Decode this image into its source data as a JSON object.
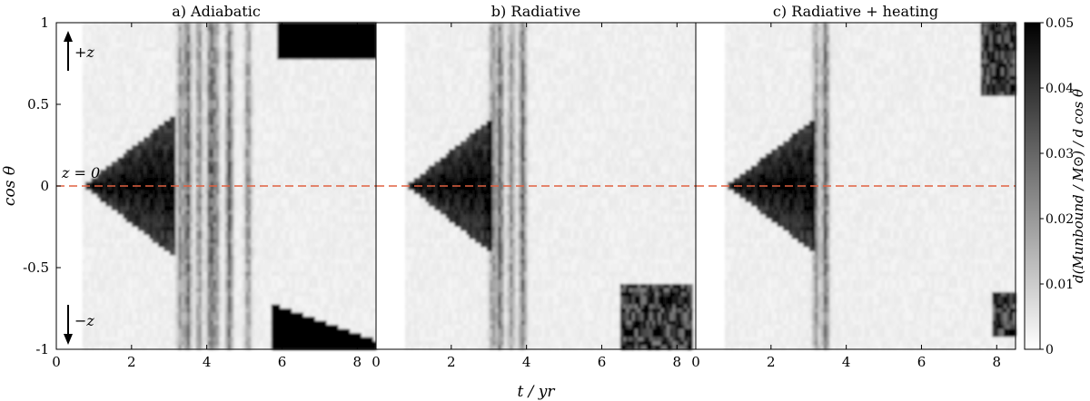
{
  "chart_data": [
    {
      "type": "heatmap",
      "title": "a) Adiabatic",
      "xlabel": "t / yr",
      "ylabel": "cos θ",
      "xlim": [
        0,
        8.5
      ],
      "ylim": [
        -1,
        1
      ],
      "xticks": [
        "0",
        "2",
        "4",
        "6",
        "8"
      ],
      "yticks": [
        "1",
        "0.5",
        "0",
        "-0.5",
        "-1"
      ],
      "reference_line": {
        "y": 0,
        "label": "z = 0",
        "color": "#e06040",
        "style": "dashed"
      },
      "annotations": [
        "+z",
        "−z"
      ],
      "features": {
        "cone_start_t": 0.7,
        "cone_end_t": 3.2,
        "cone_max_halfwidth": 0.45,
        "ejection_t": [
          3.3,
          3.5,
          3.8,
          4.1,
          4.25,
          4.6,
          5.1
        ],
        "cap_top": {
          "t_from": 5.9,
          "cos_from": 0.78
        },
        "cap_bottom": {
          "t_from": 5.7,
          "cos_to": -0.72
        },
        "background_until_t": 8.5
      }
    },
    {
      "type": "heatmap",
      "title": "b) Radiative",
      "xlabel": "t / yr",
      "xlim": [
        0,
        8.5
      ],
      "ylim": [
        -1,
        1
      ],
      "xticks": [
        "0",
        "2",
        "4",
        "6",
        "8"
      ],
      "reference_line": {
        "y": 0,
        "color": "#e06040",
        "style": "dashed"
      },
      "features": {
        "cone_start_t": 0.8,
        "cone_end_t": 3.1,
        "cone_max_halfwidth": 0.42,
        "ejection_t": [
          3.1,
          3.3,
          3.6,
          3.9
        ],
        "blob_bottom": {
          "t_from": 6.5,
          "t_to": 8.4,
          "cos_from": -1.0,
          "cos_to": -0.6
        },
        "background_until_t": 8.5
      }
    },
    {
      "type": "heatmap",
      "title": "c) Radiative + heating",
      "xlabel": "t / yr",
      "xlim": [
        0,
        8.5
      ],
      "ylim": [
        -1,
        1
      ],
      "xticks": [
        "0",
        "2",
        "4",
        "6",
        "8"
      ],
      "reference_line": {
        "y": 0,
        "color": "#e06040",
        "style": "dashed"
      },
      "features": {
        "cone_start_t": 0.8,
        "cone_end_t": 3.2,
        "cone_max_halfwidth": 0.42,
        "ejection_t": [
          3.2,
          3.45
        ],
        "blob_top": {
          "t_from": 7.6,
          "t_to": 8.5,
          "cos_from": 0.55,
          "cos_to": 1.0
        },
        "blob_bottom": {
          "t_from": 7.9,
          "t_to": 8.5,
          "cos_from": -0.92,
          "cos_to": -0.65
        },
        "background_until_t": 8.5
      }
    }
  ],
  "colorbar": {
    "label": "d(M_unbound / M_⊙) / d cos θ",
    "label_text": "d(Munbound / M⊙) / d cos θ",
    "min": 0,
    "max": 0.05,
    "ticks": [
      "0",
      "0.01",
      "0.02",
      "0.03",
      "0.04",
      "0.05"
    ],
    "colormap": "grey_r"
  },
  "xlabel": "t / yr",
  "ylabel": "cos θ",
  "colors": {
    "reference_line": "#e06040",
    "ink": "#000000",
    "paper": "#ffffff"
  }
}
